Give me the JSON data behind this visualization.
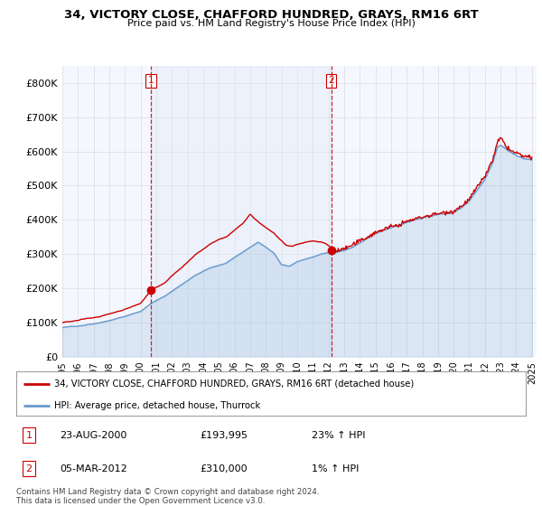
{
  "title": "34, VICTORY CLOSE, CHAFFORD HUNDRED, GRAYS, RM16 6RT",
  "subtitle": "Price paid vs. HM Land Registry's House Price Index (HPI)",
  "ylim": [
    0,
    850000
  ],
  "yticks": [
    0,
    100000,
    200000,
    300000,
    400000,
    500000,
    600000,
    700000,
    800000
  ],
  "ytick_labels": [
    "£0",
    "£100K",
    "£200K",
    "£300K",
    "£400K",
    "£500K",
    "£600K",
    "£700K",
    "£800K"
  ],
  "hpi_color": "#6699cc",
  "price_color": "#cc0000",
  "sale1_year": 2000.65,
  "sale1_price": 193995,
  "sale2_year": 2012.17,
  "sale2_price": 310000,
  "legend_line1": "34, VICTORY CLOSE, CHAFFORD HUNDRED, GRAYS, RM16 6RT (detached house)",
  "legend_line2": "HPI: Average price, detached house, Thurrock",
  "annot1_label": "1",
  "annot1_date": "23-AUG-2000",
  "annot1_price": "£193,995",
  "annot1_hpi": "23% ↑ HPI",
  "annot2_label": "2",
  "annot2_date": "05-MAR-2012",
  "annot2_price": "£310,000",
  "annot2_hpi": "1% ↑ HPI",
  "footer": "Contains HM Land Registry data © Crown copyright and database right 2024.\nThis data is licensed under the Open Government Licence v3.0.",
  "bg_color": "#ffffff",
  "plot_bg_color": "#f5f7ff",
  "grid_color": "#dddddd",
  "shade_color": "#dce8f5"
}
